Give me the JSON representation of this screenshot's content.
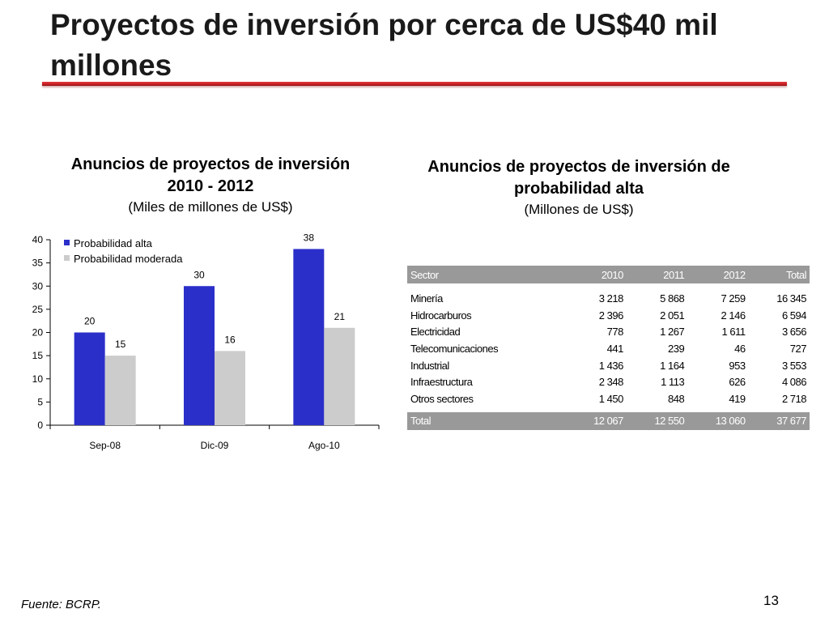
{
  "slide": {
    "title": "Proyectos de inversión por cerca de US$40 mil millones",
    "source": "Fuente: BCRP.",
    "page_number": "13"
  },
  "chart_heading": {
    "title": "Anuncios de proyectos de inversión 2010 - 2012",
    "subtitle": "(Miles de millones de US$)"
  },
  "table_heading": {
    "title": "Anuncios de proyectos de inversión de probabilidad alta",
    "subtitle": "(Millones de US$)"
  },
  "colors": {
    "alta": "#2b2fc9",
    "moderada": "#cccccc",
    "title_rule": "#c81e24",
    "table_header": "#999999"
  },
  "chart_data": {
    "type": "bar",
    "categories": [
      "Sep-08",
      "Dic-09",
      "Ago-10"
    ],
    "series": [
      {
        "name": "Probabilidad alta",
        "values": [
          20,
          30,
          38
        ]
      },
      {
        "name": "Probabilidad moderada",
        "values": [
          15,
          16,
          21
        ]
      }
    ],
    "ylim": [
      0,
      40
    ],
    "yticks": [
      0,
      5,
      10,
      15,
      20,
      25,
      30,
      35,
      40
    ],
    "legend": "top-left",
    "grid": false
  },
  "table": {
    "headers": [
      "Sector",
      "2010",
      "2011",
      "2012",
      "Total"
    ],
    "rows": [
      [
        "Minería",
        "3 218",
        "5 868",
        "7 259",
        "16 345"
      ],
      [
        "Hidrocarburos",
        "2 396",
        "2 051",
        "2 146",
        "6 594"
      ],
      [
        "Electricidad",
        "778",
        "1 267",
        "1 611",
        "3 656"
      ],
      [
        "Telecomunicaciones",
        "441",
        "239",
        "46",
        "727"
      ],
      [
        "Industrial",
        "1 436",
        "1 164",
        "953",
        "3 553"
      ],
      [
        "Infraestructura",
        "2 348",
        "1 113",
        "626",
        "4 086"
      ],
      [
        "Otros sectores",
        "1 450",
        "848",
        "419",
        "2 718"
      ]
    ],
    "total": [
      "Total",
      "12 067",
      "12 550",
      "13 060",
      "37 677"
    ]
  }
}
